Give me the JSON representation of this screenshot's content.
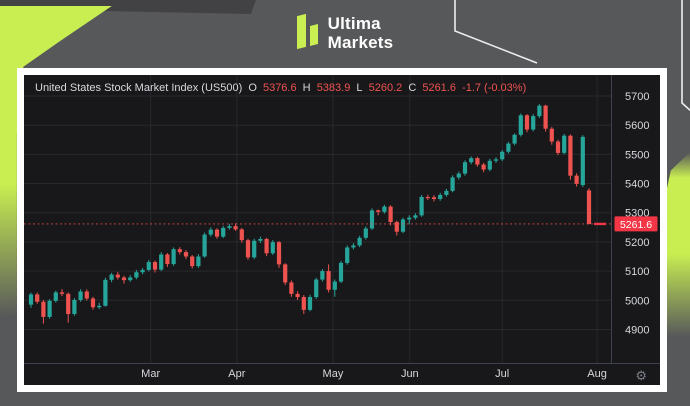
{
  "logo": {
    "line1": "Ultima",
    "line2": "Markets"
  },
  "icons": {
    "gear": "⚙"
  },
  "colors": {
    "page_bg": "#57585a",
    "accent_lime": "#c8ee51",
    "chart_bg": "#18181b",
    "up": "#26a69a",
    "down": "#ef5350",
    "last_price_badge": "#f23645",
    "grid": "#28282c",
    "axis_border": "#3e424c",
    "axis_text": "#d6d8dc"
  },
  "chart": {
    "title": {
      "instrument": "United States Stock Market Index (US500)",
      "o_label": "O",
      "open": "5376.6",
      "h_label": "H",
      "high": "5383.9",
      "l_label": "L",
      "low": "5260.2",
      "c_label": "C",
      "close": "5261.6",
      "change": "-1.7 (-0.03%)"
    },
    "last_price_label": "5261.6"
  },
  "chart_data": {
    "type": "candlestick",
    "symbol": "US500",
    "title": "United States Stock Market Index (US500)",
    "last_candle": {
      "open": 5376.6,
      "high": 5383.9,
      "low": 5260.2,
      "close": 5261.6,
      "change": -1.7,
      "change_pct": "-0.03%"
    },
    "last_price": 5261.6,
    "y_ticks": [
      5700,
      5600,
      5500,
      5400,
      5300,
      5200,
      5100,
      5000,
      4900
    ],
    "ylim": [
      4785,
      5772
    ],
    "grid": true,
    "x_months": [
      {
        "label": "Mar",
        "index": 19.3
      },
      {
        "label": "Apr",
        "index": 33.2
      },
      {
        "label": "May",
        "index": 48.7
      },
      {
        "label": "Jun",
        "index": 61.1
      },
      {
        "label": "Jul",
        "index": 76.0
      },
      {
        "label": "Aug",
        "index": 91.3
      }
    ],
    "candles": [
      [
        4985,
        5026,
        4974,
        5020
      ],
      [
        5020,
        5027,
        4988,
        4995
      ],
      [
        4995,
        5001,
        4920,
        4943
      ],
      [
        4943,
        5004,
        4937,
        4998
      ],
      [
        4998,
        5033,
        4992,
        5027
      ],
      [
        5027,
        5038,
        5014,
        5022
      ],
      [
        5022,
        5027,
        4923,
        4953
      ],
      [
        4953,
        5008,
        4947,
        5001
      ],
      [
        5001,
        5038,
        4995,
        5030
      ],
      [
        5030,
        5037,
        4999,
        5006
      ],
      [
        5006,
        5012,
        4968,
        4976
      ],
      [
        4976,
        4991,
        4970,
        4981
      ],
      [
        4981,
        5077,
        4978,
        5070
      ],
      [
        5070,
        5094,
        5062,
        5088
      ],
      [
        5088,
        5097,
        5071,
        5078
      ],
      [
        5078,
        5084,
        5057,
        5069
      ],
      [
        5069,
        5086,
        5063,
        5078
      ],
      [
        5078,
        5104,
        5072,
        5096
      ],
      [
        5096,
        5111,
        5089,
        5104
      ],
      [
        5104,
        5138,
        5099,
        5131
      ],
      [
        5131,
        5136,
        5095,
        5105
      ],
      [
        5105,
        5165,
        5100,
        5157
      ],
      [
        5157,
        5162,
        5114,
        5124
      ],
      [
        5124,
        5181,
        5118,
        5175
      ],
      [
        5175,
        5182,
        5157,
        5165
      ],
      [
        5165,
        5172,
        5141,
        5150
      ],
      [
        5150,
        5155,
        5109,
        5117
      ],
      [
        5117,
        5158,
        5111,
        5150
      ],
      [
        5150,
        5232,
        5146,
        5225
      ],
      [
        5225,
        5250,
        5218,
        5242
      ],
      [
        5242,
        5247,
        5211,
        5218
      ],
      [
        5218,
        5255,
        5213,
        5248
      ],
      [
        5248,
        5262,
        5242,
        5254
      ],
      [
        5254,
        5264,
        5238,
        5243
      ],
      [
        5243,
        5248,
        5197,
        5206
      ],
      [
        5206,
        5211,
        5139,
        5147
      ],
      [
        5147,
        5211,
        5141,
        5204
      ],
      [
        5204,
        5218,
        5196,
        5210
      ],
      [
        5210,
        5214,
        5151,
        5161
      ],
      [
        5161,
        5206,
        5155,
        5199
      ],
      [
        5199,
        5203,
        5111,
        5123
      ],
      [
        5123,
        5127,
        5052,
        5061
      ],
      [
        5061,
        5068,
        5012,
        5022
      ],
      [
        5022,
        5031,
        5001,
        5011
      ],
      [
        5011,
        5018,
        4953,
        4967
      ],
      [
        4967,
        5019,
        4962,
        5011
      ],
      [
        5011,
        5077,
        5005,
        5071
      ],
      [
        5071,
        5107,
        5064,
        5100
      ],
      [
        5100,
        5123,
        5027,
        5036
      ],
      [
        5036,
        5071,
        5012,
        5064
      ],
      [
        5064,
        5135,
        5059,
        5128
      ],
      [
        5128,
        5188,
        5122,
        5181
      ],
      [
        5181,
        5196,
        5174,
        5188
      ],
      [
        5188,
        5221,
        5182,
        5214
      ],
      [
        5214,
        5253,
        5208,
        5246
      ],
      [
        5246,
        5315,
        5241,
        5308
      ],
      [
        5308,
        5311,
        5291,
        5303
      ],
      [
        5303,
        5327,
        5297,
        5321
      ],
      [
        5321,
        5326,
        5257,
        5268
      ],
      [
        5268,
        5273,
        5222,
        5235
      ],
      [
        5235,
        5283,
        5230,
        5277
      ],
      [
        5277,
        5291,
        5260,
        5283
      ],
      [
        5283,
        5298,
        5276,
        5291
      ],
      [
        5291,
        5361,
        5286,
        5354
      ],
      [
        5354,
        5362,
        5344,
        5353
      ],
      [
        5353,
        5360,
        5339,
        5347
      ],
      [
        5347,
        5368,
        5341,
        5361
      ],
      [
        5361,
        5382,
        5355,
        5375
      ],
      [
        5375,
        5428,
        5370,
        5421
      ],
      [
        5421,
        5441,
        5414,
        5434
      ],
      [
        5434,
        5480,
        5427,
        5473
      ],
      [
        5473,
        5493,
        5466,
        5487
      ],
      [
        5487,
        5492,
        5458,
        5465
      ],
      [
        5465,
        5471,
        5439,
        5448
      ],
      [
        5448,
        5485,
        5442,
        5478
      ],
      [
        5478,
        5490,
        5471,
        5483
      ],
      [
        5483,
        5515,
        5477,
        5509
      ],
      [
        5509,
        5543,
        5503,
        5537
      ],
      [
        5537,
        5572,
        5531,
        5567
      ],
      [
        5567,
        5640,
        5561,
        5634
      ],
      [
        5634,
        5638,
        5576,
        5585
      ],
      [
        5585,
        5638,
        5579,
        5631
      ],
      [
        5631,
        5672,
        5625,
        5667
      ],
      [
        5667,
        5670,
        5578,
        5588
      ],
      [
        5588,
        5594,
        5533,
        5544
      ],
      [
        5544,
        5550,
        5497,
        5505
      ],
      [
        5505,
        5570,
        5500,
        5564
      ],
      [
        5564,
        5568,
        5413,
        5427
      ],
      [
        5427,
        5435,
        5390,
        5399
      ],
      [
        5395,
        5566,
        5388,
        5560
      ],
      [
        5376.6,
        5383.9,
        5260.2,
        5261.6
      ]
    ]
  }
}
